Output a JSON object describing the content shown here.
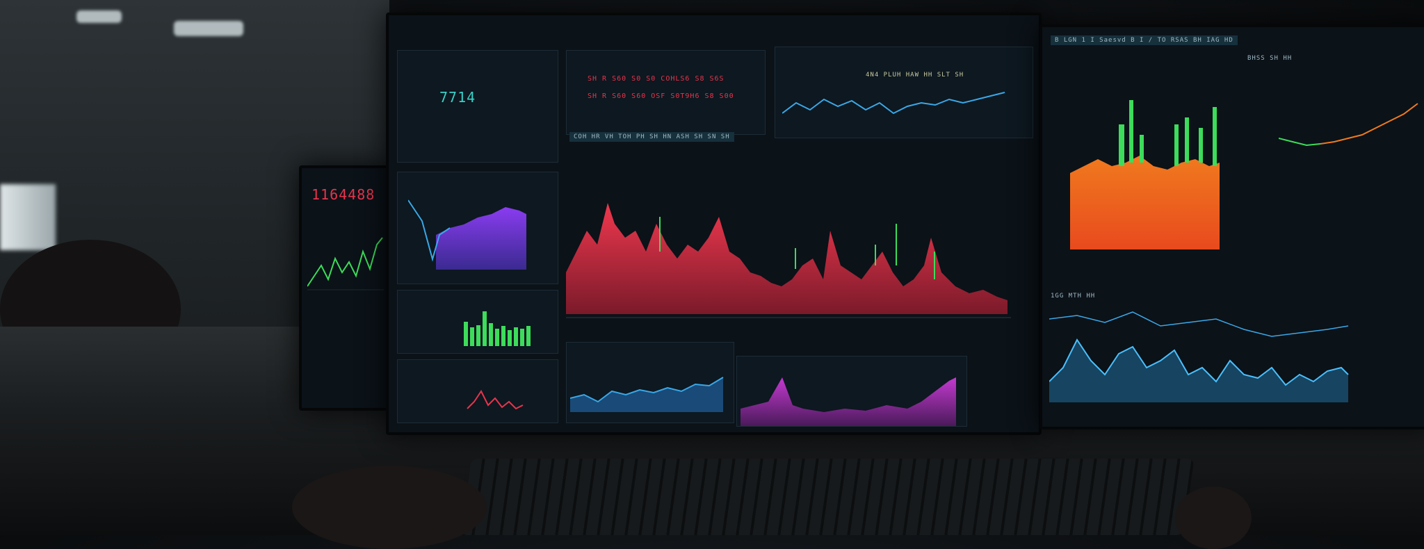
{
  "phone": {
    "big_number": "1164488"
  },
  "main_monitor": {
    "big_number": "7714",
    "red_line_1": "SH R S60 S0 S0 COHLS6 S8 S6S",
    "red_line_2": "SH R S60 S60 OSF S0T9H6 S8 S00",
    "mid_header": "COH HR VH TOH PH SH HN ASH SH SN SH",
    "top_right_header": "4N4 PLUH HAW HH SLT SH"
  },
  "right_monitor": {
    "header": "B LGN 1 I   Saesvd  B   I / TO  RSAS  BH  IAG  HD",
    "label": "BHSS SH HH",
    "small_label": "1GG MTH HH"
  },
  "colors": {
    "red": "#e8344c",
    "green": "#3ddc5a",
    "orange": "#f07a1e",
    "blue": "#3aa8e8",
    "purple": "#8a3cf0",
    "magenta": "#c43ad0"
  }
}
